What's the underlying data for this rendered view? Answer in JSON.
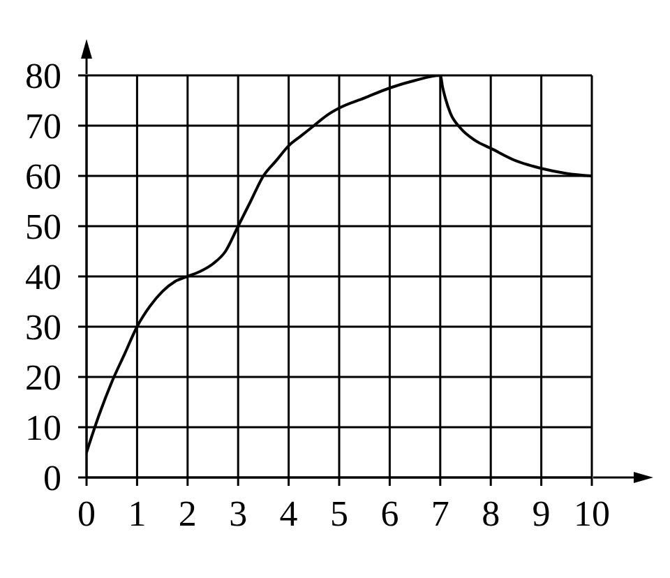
{
  "chart_data": {
    "type": "line",
    "x": [
      0,
      0.25,
      0.5,
      0.75,
      1,
      1.25,
      1.5,
      1.75,
      2,
      2.25,
      2.5,
      2.75,
      3,
      3.25,
      3.5,
      3.75,
      4,
      4.25,
      4.5,
      4.75,
      5,
      5.5,
      6,
      6.5,
      7,
      7.05,
      7.1,
      7.2,
      7.4,
      7.7,
      8,
      8.5,
      9,
      9.5,
      10
    ],
    "values": [
      5,
      12.5,
      19,
      24.5,
      30,
      34,
      37,
      39,
      40,
      41,
      42.5,
      45,
      50,
      55,
      60,
      63,
      66,
      68,
      70,
      72,
      73.5,
      75.5,
      77.5,
      79,
      80,
      77.5,
      75.5,
      72.5,
      69.5,
      67,
      65.5,
      63,
      61.5,
      60.5,
      60
    ],
    "color": "#000000",
    "line_style": "solid",
    "xlim": [
      0,
      10
    ],
    "ylim": [
      0,
      80
    ],
    "xticks": [
      0,
      1,
      2,
      3,
      4,
      5,
      6,
      7,
      8,
      9,
      10
    ],
    "yticks": [
      0,
      10,
      20,
      30,
      40,
      50,
      60,
      70,
      80
    ],
    "grid": true
  }
}
